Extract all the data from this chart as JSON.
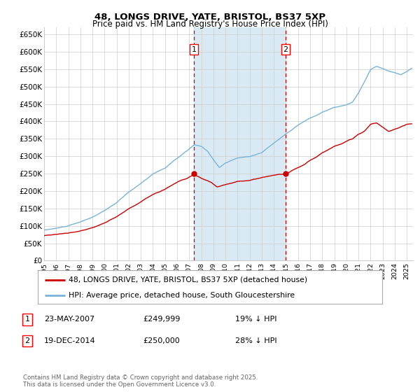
{
  "title1": "48, LONGS DRIVE, YATE, BRISTOL, BS37 5XP",
  "title2": "Price paid vs. HM Land Registry's House Price Index (HPI)",
  "legend1": "48, LONGS DRIVE, YATE, BRISTOL, BS37 5XP (detached house)",
  "legend2": "HPI: Average price, detached house, South Gloucestershire",
  "footer": "Contains HM Land Registry data © Crown copyright and database right 2025.\nThis data is licensed under the Open Government Licence v3.0.",
  "sale1_date": "23-MAY-2007",
  "sale1_price": 249999,
  "sale1_label": "1",
  "sale1_note": "19% ↓ HPI",
  "sale2_date": "19-DEC-2014",
  "sale2_price": 250000,
  "sale2_label": "2",
  "sale2_note": "28% ↓ HPI",
  "hpi_color": "#7ab4d8",
  "price_color": "#cc0000",
  "marker_color": "#cc0000",
  "vline_color": "#cc0000",
  "shade_color": "#daeaf5",
  "grid_color": "#cccccc",
  "background_color": "#ffffff",
  "ylim": [
    0,
    670000
  ],
  "yticks": [
    0,
    50000,
    100000,
    150000,
    200000,
    250000,
    300000,
    350000,
    400000,
    450000,
    500000,
    550000,
    600000,
    650000
  ],
  "sale1_x": 2007.39,
  "sale2_x": 2014.97,
  "xstart": 1995,
  "xend": 2025.5
}
